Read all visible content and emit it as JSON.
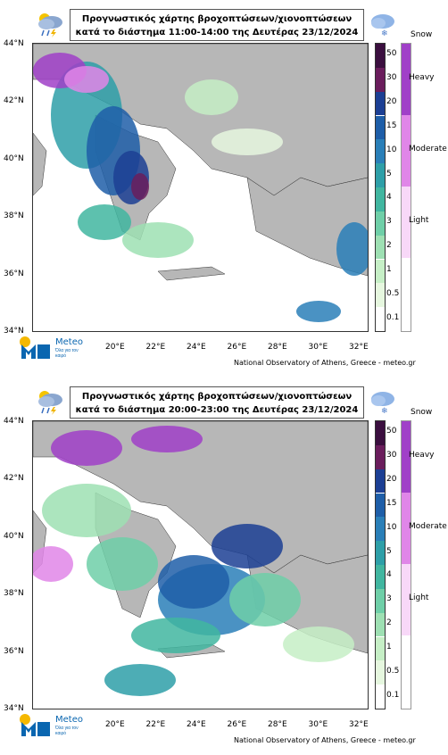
{
  "panels": [
    {
      "title_line1": "Προγνωστικός χάρτης βροχοπτώσεων/χιονοπτώσεων",
      "title_line2": "κατά το διάστημα 11:00-14:00 της Δευτέρας 23/12/2024"
    },
    {
      "title_line1": "Προγνωστικός χάρτης βροχοπτώσεων/χιονοπτώσεων",
      "title_line2": "κατά το διάστημα 20:00-23:00 της Δευτέρας 23/12/2024"
    }
  ],
  "lat_labels": [
    "44°N",
    "42°N",
    "40°N",
    "38°N",
    "36°N",
    "34°N"
  ],
  "lon_labels": [
    "20°E",
    "22°E",
    "24°E",
    "26°E",
    "28°E",
    "30°E",
    "32°E"
  ],
  "precip_scale": [
    "50",
    "30",
    "20",
    "15",
    "10",
    "5",
    "4",
    "3",
    "2",
    "1",
    "0.5",
    "0.1"
  ],
  "precip_colors": [
    "#3b0f3f",
    "#6a1d5c",
    "#1c3f94",
    "#1e5ea8",
    "#2a7fb8",
    "#2e9fa8",
    "#41b6a0",
    "#6fcfa8",
    "#9ee0b3",
    "#c6efc6",
    "#e6f7df",
    "#ffffff"
  ],
  "snow_title": "Snow",
  "snow_labels": [
    "Heavy",
    "Moderate",
    "Light"
  ],
  "snow_colors": [
    "#a040c8",
    "#e086e8",
    "#f8d8f8",
    "#ffffff"
  ],
  "credit": "National Observatory of Athens, Greece - meteo.gr",
  "logo": {
    "name": "Meteo",
    "tagline": "Όλα για τον καιρό"
  },
  "icons": {
    "left": "rain-cloud-icon",
    "right": "snow-cloud-icon"
  }
}
